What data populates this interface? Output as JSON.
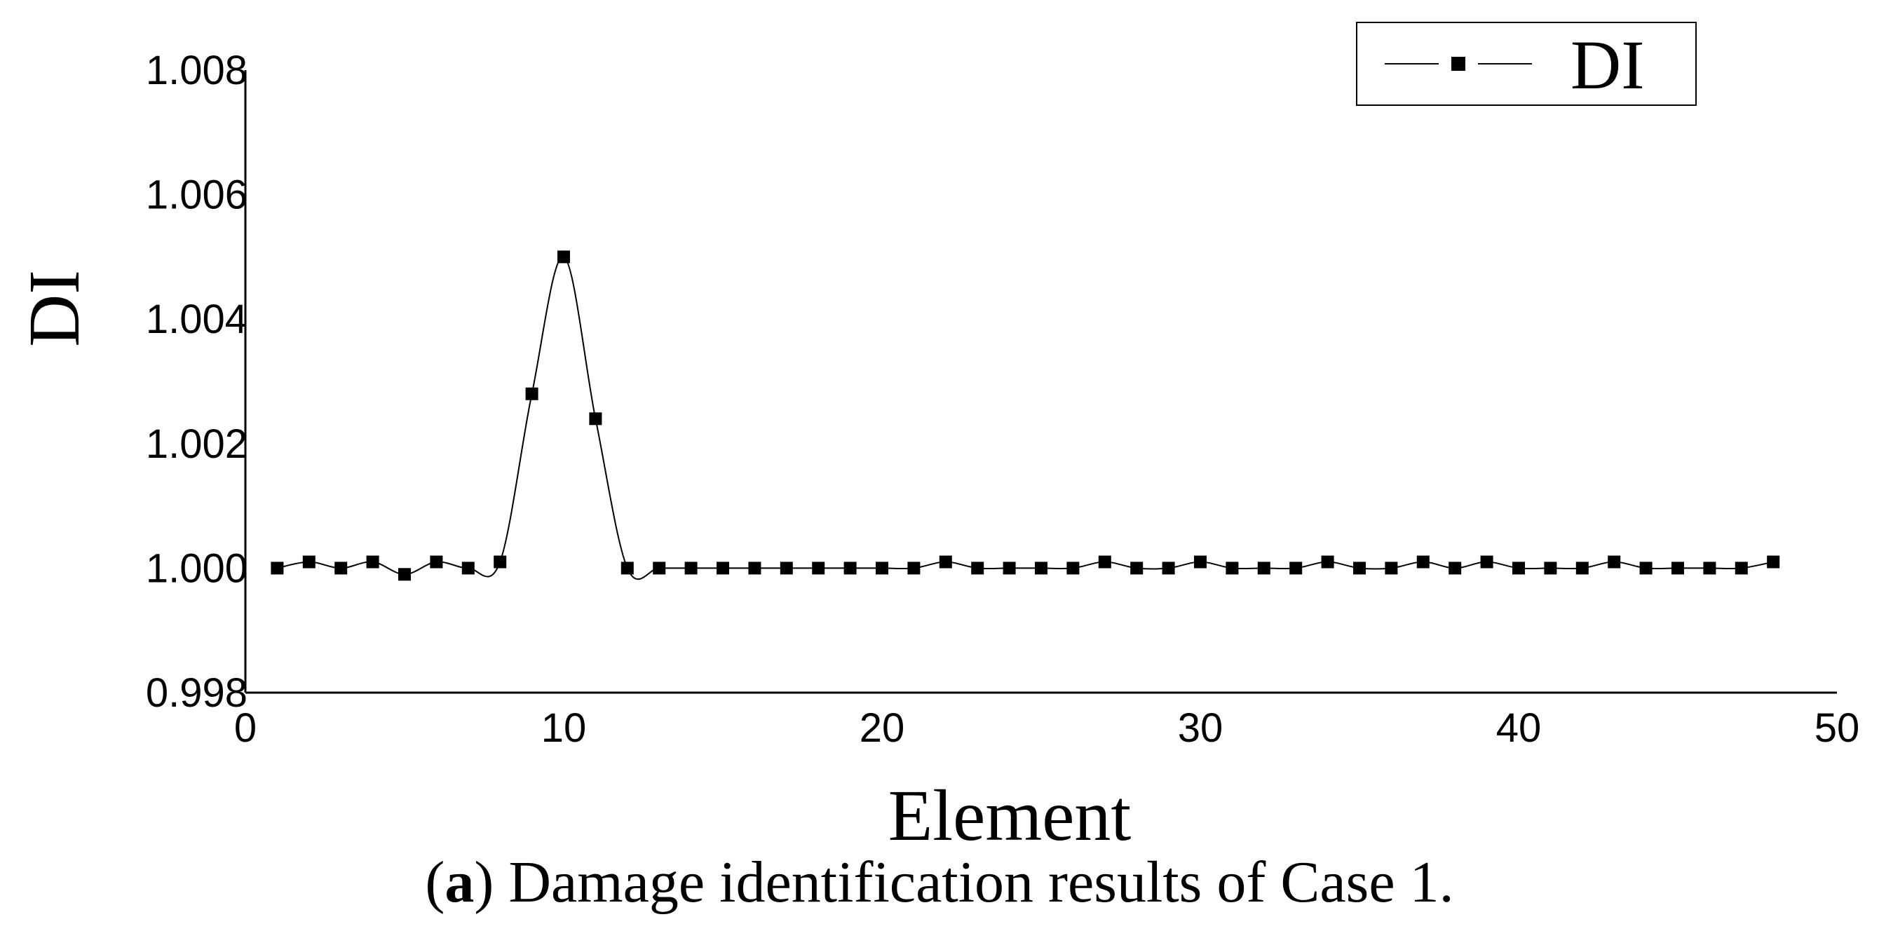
{
  "chart_data": {
    "type": "line",
    "title": "",
    "xlabel": "Element",
    "ylabel": "DI",
    "xlim": [
      0,
      50
    ],
    "ylim": [
      0.998,
      1.008
    ],
    "xticks": [
      "0",
      "10",
      "20",
      "30",
      "40",
      "50"
    ],
    "yticks": [
      "0.998",
      "1.000",
      "1.002",
      "1.004",
      "1.006",
      "1.008"
    ],
    "grid": false,
    "legend_position": "top-right",
    "smooth": true,
    "marker": "square",
    "series": [
      {
        "name": "DI",
        "color": "#000000",
        "x": [
          1,
          2,
          3,
          4,
          5,
          6,
          7,
          8,
          9,
          10,
          11,
          12,
          13,
          14,
          15,
          16,
          17,
          18,
          19,
          20,
          21,
          22,
          23,
          24,
          25,
          26,
          27,
          28,
          29,
          30,
          31,
          32,
          33,
          34,
          35,
          36,
          37,
          38,
          39,
          40,
          41,
          42,
          43,
          44,
          45,
          46,
          47,
          48
        ],
        "y": [
          1.0,
          1.0001,
          1.0,
          1.0001,
          0.9999,
          1.0001,
          1.0,
          1.0001,
          1.0028,
          1.005,
          1.0024,
          1.0,
          1.0,
          1.0,
          1.0,
          1.0,
          1.0,
          1.0,
          1.0,
          1.0,
          1.0,
          1.0001,
          1.0,
          1.0,
          1.0,
          1.0,
          1.0001,
          1.0,
          1.0,
          1.0001,
          1.0,
          1.0,
          1.0,
          1.0001,
          1.0,
          1.0,
          1.0001,
          1.0,
          1.0001,
          1.0,
          1.0,
          1.0,
          1.0001,
          1.0,
          1.0,
          1.0,
          1.0,
          1.0001
        ]
      }
    ]
  },
  "caption": {
    "label": "a",
    "text": ") Damage identification results of Case 1.",
    "open_paren": "("
  }
}
